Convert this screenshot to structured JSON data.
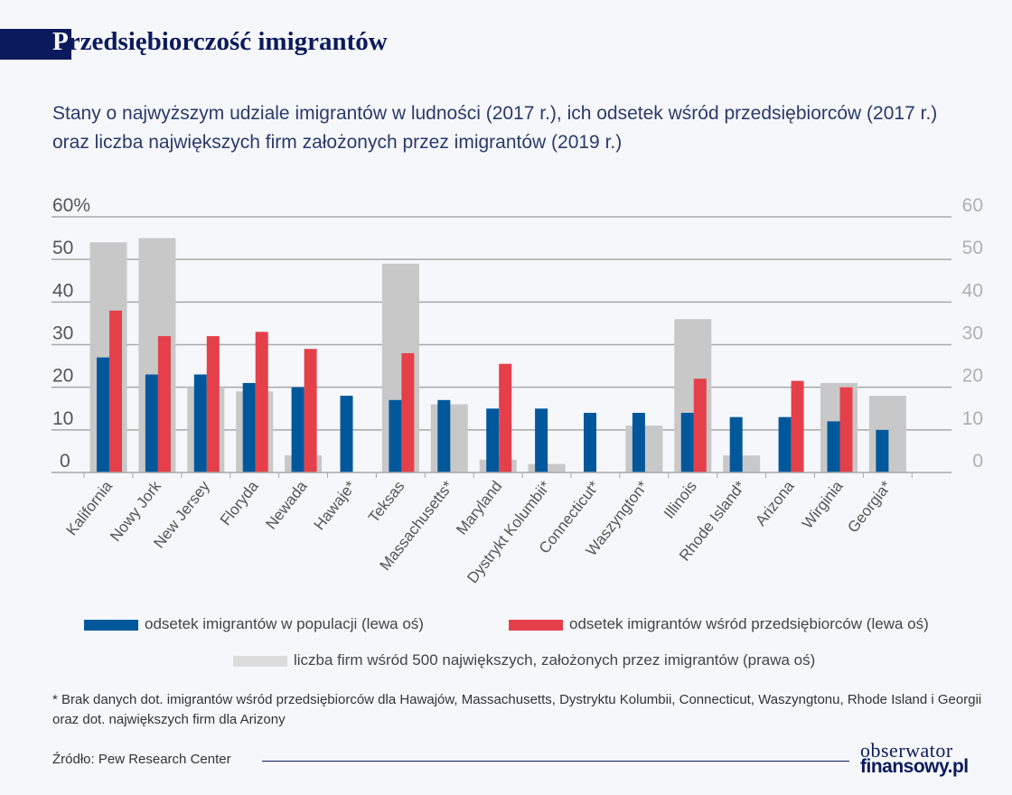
{
  "title_first_letter": "P",
  "title_rest": "rzedsiębiorczość imigrantów",
  "subtitle": "Stany o najwyższym udziale imigrantów w ludności (2017 r.), ich odsetek wśród przedsiębiorców (2017 r.) oraz liczba największych firm założonych przez imigrantów (2019 r.)",
  "chart_data": {
    "type": "bar",
    "title": "Przedsiębiorczość imigrantów",
    "categories": [
      "Kalifornia",
      "Nowy Jork",
      "New Jersey",
      "Floryda",
      "Newada",
      "Hawaje*",
      "Teksas",
      "Massachusetts*",
      "Maryland",
      "Dystrykt Kolumbii*",
      "Connecticut*",
      "Waszyngton*",
      "Illinois",
      "Rhode Island*",
      "Arizona",
      "Wirginia",
      "Georgia*"
    ],
    "series": [
      {
        "name": "odsetek imigrantów w populacji (lewa oś)",
        "axis": "left",
        "color": "#00589b",
        "values": [
          27,
          23,
          23,
          21,
          20,
          18,
          17,
          17,
          15,
          15,
          14,
          14,
          14,
          13,
          13,
          12,
          10
        ]
      },
      {
        "name": "odsetek imigrantów wśród przedsiębiorców (lewa oś)",
        "axis": "left",
        "color": "#e5404a",
        "values": [
          38,
          32,
          32,
          33,
          29,
          null,
          28,
          null,
          25.5,
          null,
          null,
          null,
          22,
          null,
          21.5,
          20,
          null
        ]
      },
      {
        "name": "liczba firm wśród 500 największych, założonych przez imigrantów (prawa oś)",
        "axis": "right",
        "color": "#c8c8c8",
        "values": [
          54,
          55,
          20,
          19,
          4,
          null,
          49,
          16,
          3,
          2,
          null,
          11,
          36,
          4,
          null,
          21,
          18
        ]
      }
    ],
    "left_axis": {
      "ticks": [
        "0",
        "10",
        "20",
        "30",
        "40",
        "50",
        "60%"
      ],
      "range": [
        0,
        60
      ]
    },
    "right_axis": {
      "ticks": [
        "0",
        "10",
        "20",
        "30",
        "40",
        "50",
        "60"
      ],
      "range": [
        0,
        60
      ]
    },
    "grid": true,
    "legend_placement": "bottom"
  },
  "footnote": "* Brak danych dot. imigrantów wśród przedsiębiorców dla Hawajów, Massachusetts, Dystryktu Kolumbii, Connecticut, Waszyngtonu, Rhode Island i Georgii oraz dot. największych firm dla Arizony",
  "source": "Źródło: Pew Research Center",
  "logo": {
    "line1": "obserwator",
    "line2": "finansowy.pl"
  }
}
